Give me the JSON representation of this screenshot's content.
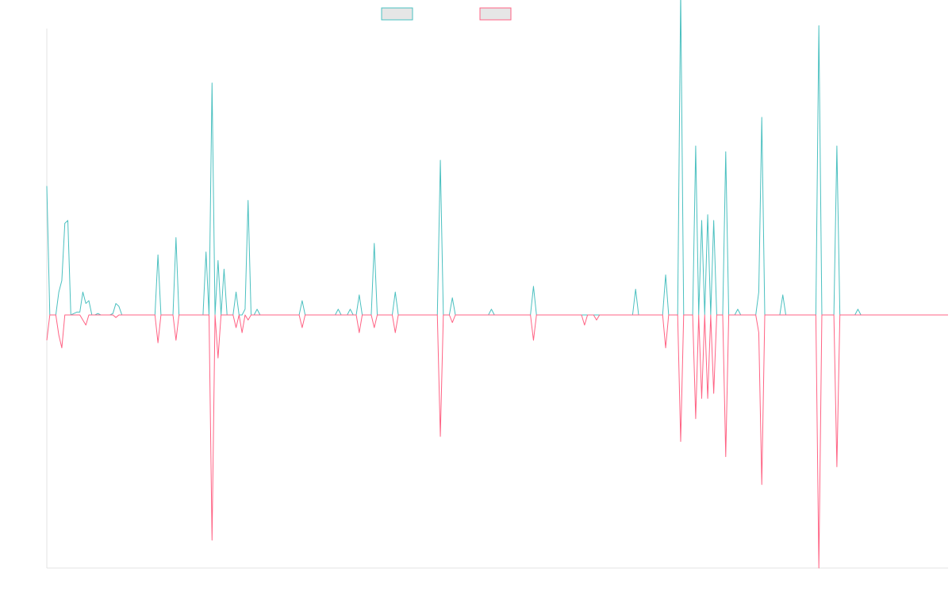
{
  "chart_data": {
    "type": "line",
    "title": "",
    "xlabel": "",
    "ylabel": "",
    "x_count": 301,
    "ylim": [
      -1,
      1
    ],
    "grid": false,
    "legend_position": "top-center",
    "series": [
      {
        "name": "",
        "color": "#4bc0c0",
        "fill": "#e6e6e6",
        "points": [
          [
            0,
            0.45
          ],
          [
            1,
            0
          ],
          [
            4,
            0.08
          ],
          [
            5,
            0.12
          ],
          [
            6,
            0.32
          ],
          [
            7,
            0.33
          ],
          [
            8,
            0
          ],
          [
            9,
            0.005
          ],
          [
            10,
            0.01
          ],
          [
            11,
            0.01
          ],
          [
            12,
            0.08
          ],
          [
            13,
            0.04
          ],
          [
            14,
            0.05
          ],
          [
            15,
            0
          ],
          [
            17,
            0.005
          ],
          [
            22,
            0.005
          ],
          [
            23,
            0.04
          ],
          [
            24,
            0.03
          ],
          [
            25,
            0
          ],
          [
            37,
            0.21
          ],
          [
            38,
            0
          ],
          [
            43,
            0.27
          ],
          [
            44,
            0
          ],
          [
            53,
            0.22
          ],
          [
            54,
            0
          ],
          [
            55,
            0.81
          ],
          [
            56,
            0
          ],
          [
            57,
            0.19
          ],
          [
            58,
            0
          ],
          [
            59,
            0.16
          ],
          [
            60,
            0
          ],
          [
            63,
            0.08
          ],
          [
            64,
            0
          ],
          [
            66,
            0.02
          ],
          [
            67,
            0.4
          ],
          [
            68,
            0
          ],
          [
            70,
            0.02
          ],
          [
            71,
            0
          ],
          [
            85,
            0.05
          ],
          [
            86,
            0
          ],
          [
            97,
            0.02
          ],
          [
            98,
            0
          ],
          [
            101,
            0.02
          ],
          [
            102,
            0
          ],
          [
            104,
            0.07
          ],
          [
            105,
            0
          ],
          [
            109,
            0.25
          ],
          [
            110,
            0
          ],
          [
            116,
            0.08
          ],
          [
            117,
            0
          ],
          [
            131,
            0.54
          ],
          [
            132,
            0
          ],
          [
            135,
            0.06
          ],
          [
            136,
            0
          ],
          [
            148,
            0.02
          ],
          [
            149,
            0
          ],
          [
            162,
            0.1
          ],
          [
            163,
            0
          ],
          [
            196,
            0.09
          ],
          [
            197,
            0
          ],
          [
            206,
            0.14
          ],
          [
            207,
            0
          ],
          [
            211,
            1.13
          ],
          [
            212,
            0
          ],
          [
            216,
            0.59
          ],
          [
            217,
            0
          ],
          [
            218,
            0.33
          ],
          [
            219,
            0
          ],
          [
            220,
            0.35
          ],
          [
            221,
            0
          ],
          [
            222,
            0.33
          ],
          [
            223,
            0
          ],
          [
            226,
            0.57
          ],
          [
            227,
            0
          ],
          [
            230,
            0.02
          ],
          [
            231,
            0
          ],
          [
            237,
            0.08
          ],
          [
            238,
            0.69
          ],
          [
            239,
            0
          ],
          [
            245,
            0.07
          ],
          [
            246,
            0
          ],
          [
            257,
            1.01
          ],
          [
            258,
            0
          ],
          [
            263,
            0.59
          ],
          [
            264,
            0
          ],
          [
            270,
            0.02
          ],
          [
            271,
            0
          ],
          [
            300,
            0
          ]
        ]
      },
      {
        "name": "",
        "color": "#ff6384",
        "fill": "#e6e6e6",
        "points": [
          [
            0,
            -0.1
          ],
          [
            1,
            0
          ],
          [
            4,
            -0.08
          ],
          [
            5,
            -0.13
          ],
          [
            6,
            0
          ],
          [
            12,
            -0.02
          ],
          [
            13,
            -0.04
          ],
          [
            14,
            0
          ],
          [
            23,
            -0.01
          ],
          [
            24,
            0
          ],
          [
            37,
            -0.11
          ],
          [
            38,
            0
          ],
          [
            43,
            -0.1
          ],
          [
            44,
            0
          ],
          [
            55,
            -0.89
          ],
          [
            56,
            0
          ],
          [
            57,
            -0.17
          ],
          [
            58,
            0
          ],
          [
            63,
            -0.05
          ],
          [
            64,
            0
          ],
          [
            65,
            -0.07
          ],
          [
            66,
            0
          ],
          [
            67,
            -0.02
          ],
          [
            68,
            0
          ],
          [
            85,
            -0.05
          ],
          [
            86,
            0
          ],
          [
            104,
            -0.07
          ],
          [
            105,
            0
          ],
          [
            109,
            -0.05
          ],
          [
            110,
            0
          ],
          [
            116,
            -0.07
          ],
          [
            117,
            0
          ],
          [
            131,
            -0.48
          ],
          [
            132,
            0
          ],
          [
            135,
            -0.03
          ],
          [
            136,
            0
          ],
          [
            162,
            -0.1
          ],
          [
            163,
            0
          ],
          [
            179,
            -0.04
          ],
          [
            180,
            0
          ],
          [
            183,
            -0.02
          ],
          [
            184,
            0
          ],
          [
            206,
            -0.13
          ],
          [
            207,
            0
          ],
          [
            211,
            -0.5
          ],
          [
            212,
            0
          ],
          [
            216,
            -0.41
          ],
          [
            217,
            0
          ],
          [
            218,
            -0.33
          ],
          [
            219,
            0
          ],
          [
            220,
            -0.33
          ],
          [
            221,
            0
          ],
          [
            222,
            -0.31
          ],
          [
            223,
            0
          ],
          [
            226,
            -0.56
          ],
          [
            227,
            0
          ],
          [
            237,
            -0.07
          ],
          [
            238,
            -0.67
          ],
          [
            239,
            0
          ],
          [
            257,
            -1.0
          ],
          [
            258,
            0
          ],
          [
            263,
            -0.6
          ],
          [
            264,
            0
          ],
          [
            300,
            0
          ]
        ]
      }
    ]
  }
}
